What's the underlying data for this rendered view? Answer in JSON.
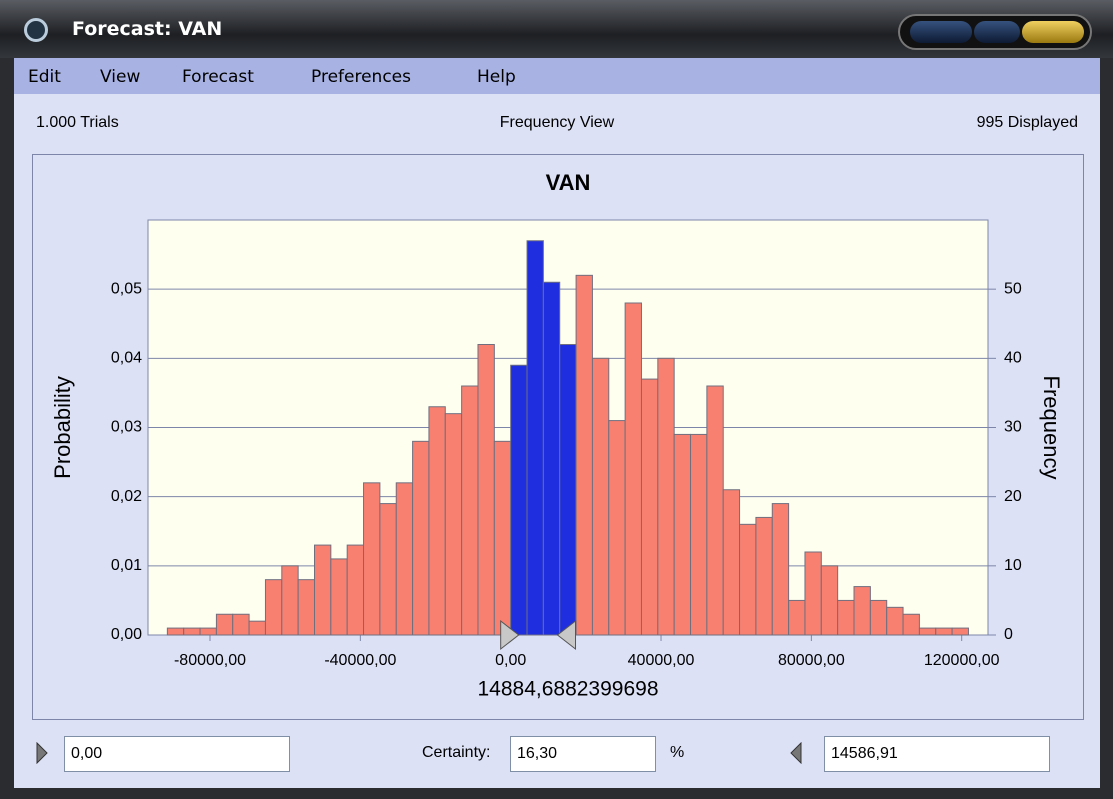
{
  "window": {
    "title": "Forecast: VAN"
  },
  "menu": [
    "Edit",
    "View",
    "Forecast",
    "Preferences",
    "Help"
  ],
  "status": {
    "trials": "1.000 Trials",
    "view": "Frequency View",
    "displayed": "995 Displayed"
  },
  "chart_data": {
    "type": "histogram",
    "title": "VAN",
    "ylabel": "Probability",
    "y2label": "Frequency",
    "x_value_label": "14884,6882399698",
    "bins": [
      -91350,
      -87000,
      -82650,
      -78300,
      -73950,
      -69600,
      -65250,
      -60900,
      -56550,
      -52200,
      -47850,
      -43500,
      -39150,
      -34800,
      -30450,
      -26100,
      -21750,
      -17400,
      -13050,
      -8700,
      -4350,
      0,
      4350,
      8700,
      13050,
      17400,
      21750,
      26100,
      30450,
      34800,
      39150,
      43500,
      47850,
      52200,
      56550,
      60900,
      65250,
      69600,
      73950,
      78300,
      82650,
      87000,
      91350,
      95700,
      100050,
      104400,
      108750,
      113100,
      117450,
      121800
    ],
    "values": [
      1,
      1,
      1,
      3,
      3,
      2,
      8,
      10,
      8,
      13,
      11,
      13,
      22,
      19,
      22,
      28,
      33,
      32,
      36,
      42,
      28,
      39,
      57,
      51,
      42,
      52,
      40,
      31,
      48,
      37,
      40,
      29,
      29,
      36,
      21,
      16,
      17,
      19,
      5,
      12,
      10,
      5,
      7,
      5,
      4,
      3,
      1,
      1,
      1
    ],
    "axis": "y2",
    "color": "#f88070",
    "highlight_color": "#1f2fe0",
    "highlight_range": [
      0,
      14586.91
    ],
    "xlim": [
      -96500,
      127000
    ],
    "xticks": [
      {
        "value": -80000,
        "label": "-80000,00"
      },
      {
        "value": -40000,
        "label": "-40000,00"
      },
      {
        "value": 0,
        "label": "0,00"
      },
      {
        "value": 40000,
        "label": "40000,00"
      },
      {
        "value": 80000,
        "label": "80000,00"
      },
      {
        "value": 120000,
        "label": "120000,00"
      }
    ],
    "ylim": [
      0,
      0.06
    ],
    "yticks": [
      {
        "value": 0,
        "label": "0,00"
      },
      {
        "value": 0.01,
        "label": "0,01"
      },
      {
        "value": 0.02,
        "label": "0,02"
      },
      {
        "value": 0.03,
        "label": "0,03"
      },
      {
        "value": 0.04,
        "label": "0,04"
      },
      {
        "value": 0.05,
        "label": "0,05"
      }
    ],
    "y2lim": [
      0,
      60
    ],
    "y2ticks": [
      0,
      10,
      20,
      30,
      40,
      50
    ],
    "grid": true
  },
  "controls": {
    "lower": "0,00",
    "certainty_label": "Certainty:",
    "certainty": "16,30",
    "percent": "%",
    "upper": "14586,91"
  }
}
